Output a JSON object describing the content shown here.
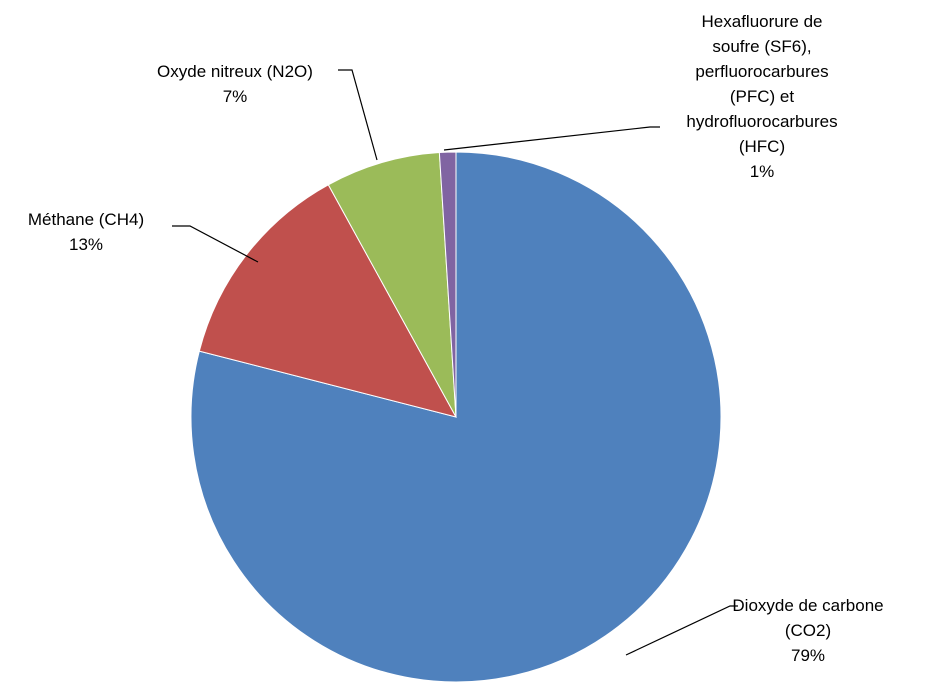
{
  "chart_data": {
    "type": "pie",
    "categories": [
      "Dioxyde de carbone (CO2)",
      "Méthane (CH4)",
      "Oxyde nitreux (N2O)",
      "Hexafluorure de soufre (SF6), perfluorocarbures (PFC) et hydrofluorocarbures (HFC)"
    ],
    "values": [
      79,
      13,
      7,
      1
    ],
    "value_labels": [
      "79%",
      "13%",
      "7%",
      "1%"
    ],
    "colors": [
      "#4f81bd",
      "#c0504d",
      "#9bbb59",
      "#8064a2"
    ]
  }
}
